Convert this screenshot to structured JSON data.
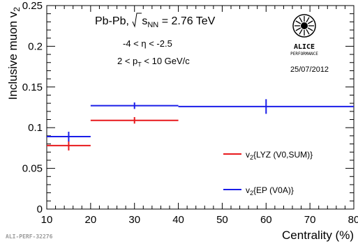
{
  "chart_data": {
    "type": "scatter",
    "xlabel": "Centrality (%)",
    "ylabel": "Inclusive muon v2",
    "xlim": [
      10,
      80
    ],
    "ylim": [
      0,
      0.25
    ],
    "xticks": [
      10,
      20,
      30,
      40,
      50,
      60,
      70,
      80
    ],
    "yticks": [
      0,
      0.05,
      0.1,
      0.15,
      0.2,
      0.25
    ],
    "xtick_labels": [
      "10",
      "20",
      "30",
      "40",
      "50",
      "60",
      "70",
      "80"
    ],
    "ytick_labels": [
      "0",
      "0.05",
      "0.1",
      "0.15",
      "0.2",
      "0.25"
    ],
    "colors": {
      "lyz": "#e8191c",
      "ep": "#1a1de8"
    },
    "series": [
      {
        "name": "v2{LYZ (V0,SUM)}",
        "color": "#e8191c",
        "points": [
          {
            "xlow": 10,
            "xhigh": 20,
            "x": 15,
            "y": 0.078,
            "yerr": 0.006
          },
          {
            "xlow": 20,
            "xhigh": 40,
            "x": 30,
            "y": 0.109,
            "yerr": 0.004
          }
        ]
      },
      {
        "name": "v2{EP (V0A)}",
        "color": "#1a1de8",
        "points": [
          {
            "xlow": 10,
            "xhigh": 20,
            "x": 15,
            "y": 0.089,
            "yerr": 0.006
          },
          {
            "xlow": 20,
            "xhigh": 40,
            "x": 30,
            "y": 0.127,
            "yerr": 0.004
          },
          {
            "xlow": 40,
            "xhigh": 80,
            "x": 60,
            "y": 0.126,
            "yerr": 0.009
          }
        ]
      }
    ],
    "legend_position": "bottom-right"
  },
  "annotations": {
    "system": "Pb-Pb, ",
    "energy_lhs": "NN",
    "energy_rhs": " = 2.76 TeV",
    "eta_range": "-4 < η < -2.5",
    "pt_range_pre": "2 < p",
    "pt_range_sub": "T",
    "pt_range_post": " < 10 GeV/c",
    "date": "25/07/2012",
    "logo_title": "ALICE",
    "logo_subtitle": "PERFORMANCE",
    "footer": "ALI-PERF-32276"
  }
}
